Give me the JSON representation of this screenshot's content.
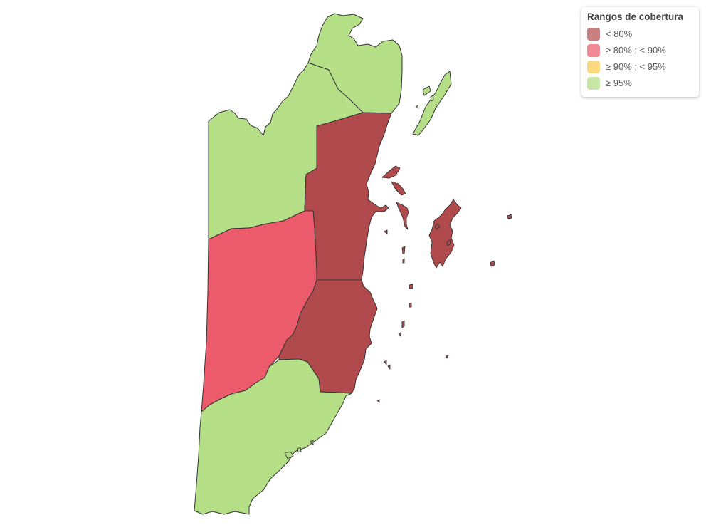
{
  "legend": {
    "title": "Rangos de cobertura",
    "items": [
      {
        "label": "< 80%",
        "color": "#c97f80"
      },
      {
        "label": "≥ 80% ; < 90%",
        "color": "#f28a95"
      },
      {
        "label": "≥ 90% ; < 95%",
        "color": "#fbd97f"
      },
      {
        "label": "≥ 95%",
        "color": "#c6e7a6"
      }
    ]
  },
  "map": {
    "colors": {
      "below_80": "#b04a4c",
      "from_80_to_90": "#ec5b6c",
      "from_90_to_95": "#fbd97f",
      "at_least_95": "#b5df87",
      "border": "#333333"
    },
    "regions": [
      {
        "id": "corozal",
        "range": "at_least_95"
      },
      {
        "id": "orange-walk",
        "range": "at_least_95"
      },
      {
        "id": "belize",
        "range": "below_80"
      },
      {
        "id": "cayo",
        "range": "from_80_to_90"
      },
      {
        "id": "stann-creek",
        "range": "below_80"
      },
      {
        "id": "toledo",
        "range": "at_least_95"
      }
    ]
  }
}
